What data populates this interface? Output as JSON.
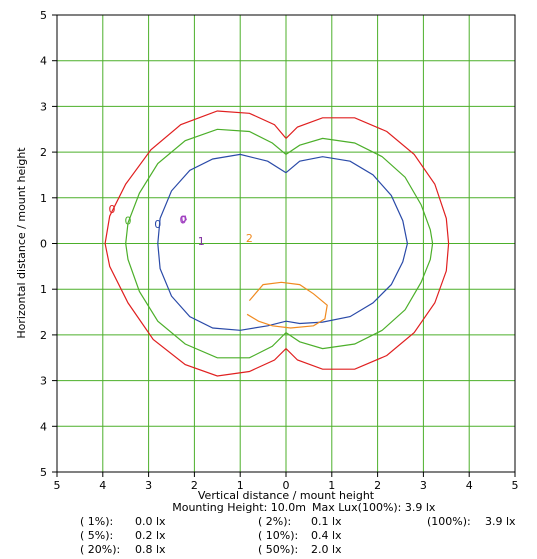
{
  "chart_data": {
    "type": "contour",
    "xlabel": "Vertical distance / mount height",
    "ylabel": "Horizontal distance / mount height",
    "xlim": [
      -5,
      5
    ],
    "ylim": [
      -5,
      5
    ],
    "grid": true,
    "x_tick_labels": [
      "5",
      "4",
      "3",
      "2",
      "1",
      "0",
      "1",
      "2",
      "3",
      "4",
      "5"
    ],
    "y_tick_labels": [
      "5",
      "4",
      "3",
      "2",
      "1",
      "0",
      "1",
      "2",
      "3",
      "4",
      "5"
    ],
    "info": {
      "mounting_height": "Mounting Height: 10.0m",
      "max_lux": "Max Lux(100%): 3.9 lx"
    },
    "legend": [
      {
        "pct": "( 1%):",
        "value": "0.0 lx"
      },
      {
        "pct": "( 2%):",
        "value": "0.1 lx"
      },
      {
        "pct": "(100%):",
        "value": "3.9 lx"
      },
      {
        "pct": "( 5%):",
        "value": "0.2 lx"
      },
      {
        "pct": "( 10%):",
        "value": "0.4 lx"
      },
      {
        "pct": "( 20%):",
        "value": "0.8 lx"
      },
      {
        "pct": "( 50%):",
        "value": "2.0 lx"
      }
    ],
    "contours": [
      {
        "label": "0",
        "color": "#e02020",
        "label_pos": [
          -3.8,
          0.75
        ],
        "points": [
          [
            0,
            2.3
          ],
          [
            0.25,
            2.55
          ],
          [
            0.8,
            2.75
          ],
          [
            1.5,
            2.75
          ],
          [
            2.2,
            2.45
          ],
          [
            2.8,
            1.95
          ],
          [
            3.25,
            1.3
          ],
          [
            3.5,
            0.55
          ],
          [
            3.55,
            0
          ],
          [
            3.5,
            -0.6
          ],
          [
            3.25,
            -1.3
          ],
          [
            2.8,
            -1.95
          ],
          [
            2.2,
            -2.45
          ],
          [
            1.5,
            -2.75
          ],
          [
            0.8,
            -2.75
          ],
          [
            0.25,
            -2.55
          ],
          [
            0,
            -2.3
          ],
          [
            -0.25,
            -2.55
          ],
          [
            -0.8,
            -2.8
          ],
          [
            -1.5,
            -2.9
          ],
          [
            -2.2,
            -2.65
          ],
          [
            -2.9,
            -2.1
          ],
          [
            -3.45,
            -1.3
          ],
          [
            -3.85,
            -0.5
          ],
          [
            -3.95,
            0
          ],
          [
            -3.85,
            0.6
          ],
          [
            -3.5,
            1.3
          ],
          [
            -2.95,
            2.05
          ],
          [
            -2.3,
            2.6
          ],
          [
            -1.5,
            2.9
          ],
          [
            -0.8,
            2.85
          ],
          [
            -0.25,
            2.6
          ],
          [
            0,
            2.3
          ]
        ]
      },
      {
        "label": "0",
        "color": "#4caf2a",
        "label_pos": [
          -3.45,
          0.5
        ],
        "points": [
          [
            0,
            1.95
          ],
          [
            0.3,
            2.15
          ],
          [
            0.8,
            2.3
          ],
          [
            1.5,
            2.2
          ],
          [
            2.1,
            1.9
          ],
          [
            2.6,
            1.45
          ],
          [
            2.95,
            0.85
          ],
          [
            3.15,
            0.3
          ],
          [
            3.2,
            0
          ],
          [
            3.15,
            -0.35
          ],
          [
            2.95,
            -0.85
          ],
          [
            2.6,
            -1.45
          ],
          [
            2.1,
            -1.9
          ],
          [
            1.5,
            -2.2
          ],
          [
            0.8,
            -2.3
          ],
          [
            0.3,
            -2.15
          ],
          [
            0,
            -1.95
          ],
          [
            -0.3,
            -2.25
          ],
          [
            -0.8,
            -2.5
          ],
          [
            -1.5,
            -2.5
          ],
          [
            -2.2,
            -2.2
          ],
          [
            -2.8,
            -1.7
          ],
          [
            -3.2,
            -1.05
          ],
          [
            -3.45,
            -0.35
          ],
          [
            -3.5,
            0
          ],
          [
            -3.45,
            0.45
          ],
          [
            -3.2,
            1.1
          ],
          [
            -2.8,
            1.75
          ],
          [
            -2.2,
            2.25
          ],
          [
            -1.5,
            2.5
          ],
          [
            -0.8,
            2.45
          ],
          [
            -0.3,
            2.2
          ],
          [
            0,
            1.95
          ]
        ]
      },
      {
        "label": "0",
        "color": "#2a4aa8",
        "label_pos": [
          -2.8,
          0.43
        ],
        "points": [
          [
            0,
            1.55
          ],
          [
            0.3,
            1.8
          ],
          [
            0.8,
            1.9
          ],
          [
            1.4,
            1.8
          ],
          [
            1.9,
            1.5
          ],
          [
            2.3,
            1.05
          ],
          [
            2.55,
            0.5
          ],
          [
            2.65,
            0
          ],
          [
            2.55,
            -0.4
          ],
          [
            2.3,
            -0.9
          ],
          [
            1.9,
            -1.3
          ],
          [
            1.4,
            -1.6
          ],
          [
            0.8,
            -1.72
          ],
          [
            0.3,
            -1.75
          ],
          [
            0,
            -1.7
          ],
          [
            -0.4,
            -1.8
          ],
          [
            -1,
            -1.9
          ],
          [
            -1.6,
            -1.85
          ],
          [
            -2.1,
            -1.6
          ],
          [
            -2.5,
            -1.15
          ],
          [
            -2.75,
            -0.55
          ],
          [
            -2.8,
            0
          ],
          [
            -2.75,
            0.55
          ],
          [
            -2.5,
            1.15
          ],
          [
            -2.1,
            1.6
          ],
          [
            -1.6,
            1.85
          ],
          [
            -1,
            1.95
          ],
          [
            -0.4,
            1.8
          ],
          [
            0,
            1.55
          ]
        ]
      },
      {
        "label": "0",
        "color": "#a040c0",
        "label_pos": [
          -2.25,
          0.52
        ],
        "points": [
          [
            -2.28,
            0.58
          ],
          [
            -2.2,
            0.6
          ],
          [
            -2.18,
            0.52
          ],
          [
            -2.26,
            0.46
          ],
          [
            -2.28,
            0.58
          ]
        ]
      },
      {
        "label": "1",
        "color": "#8030a0",
        "label_pos": [
          -1.85,
          0.05
        ],
        "points": []
      },
      {
        "label": "2",
        "color": "#f08a20",
        "label_pos": [
          -0.8,
          0.12
        ],
        "points": [
          [
            -0.8,
            -1.25
          ],
          [
            -0.5,
            -0.9
          ],
          [
            -0.1,
            -0.85
          ],
          [
            0.3,
            -0.9
          ],
          [
            0.6,
            -1.1
          ],
          [
            0.9,
            -1.35
          ],
          [
            0.85,
            -1.65
          ],
          [
            0.6,
            -1.8
          ],
          [
            0.1,
            -1.85
          ],
          [
            -0.3,
            -1.8
          ],
          [
            -0.6,
            -1.7
          ],
          [
            -0.85,
            -1.55
          ]
        ]
      }
    ]
  }
}
